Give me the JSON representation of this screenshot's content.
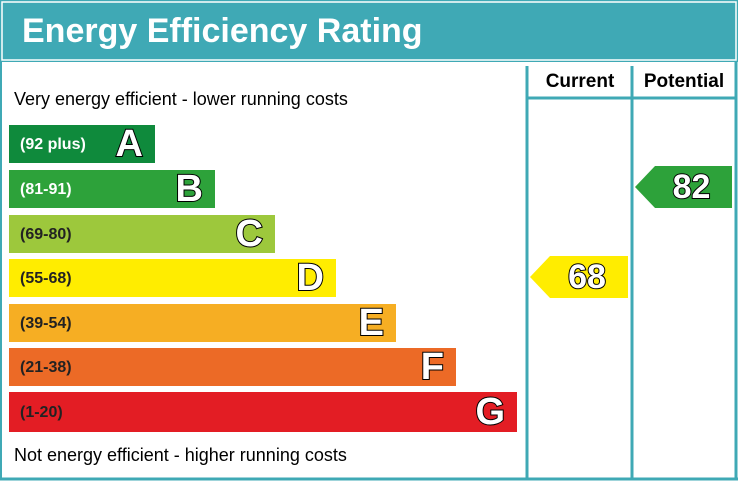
{
  "title": "Energy Efficiency Rating",
  "headers": {
    "current": "Current",
    "potential": "Potential"
  },
  "top_note": "Very energy efficient - lower running costs",
  "bottom_note": "Not energy efficient - higher running costs",
  "bands": [
    {
      "range": "(92 plus)",
      "letter": "A",
      "color": "#0f8a3c",
      "text_color": "#ffffff"
    },
    {
      "range": "(81-91)",
      "letter": "B",
      "color": "#2da23a",
      "text_color": "#ffffff"
    },
    {
      "range": "(69-80)",
      "letter": "C",
      "color": "#9dc83c",
      "text_color": "#222222"
    },
    {
      "range": "(55-68)",
      "letter": "D",
      "color": "#ffed00",
      "text_color": "#222222"
    },
    {
      "range": "(39-54)",
      "letter": "E",
      "color": "#f6ae23",
      "text_color": "#222222"
    },
    {
      "range": "(21-38)",
      "letter": "F",
      "color": "#ec6a26",
      "text_color": "#222222"
    },
    {
      "range": "(1-20)",
      "letter": "G",
      "color": "#e31d24",
      "text_color": "#222222"
    }
  ],
  "current": {
    "value": 68,
    "color": "#ffed00"
  },
  "potential": {
    "value": 82,
    "color": "#2da23a"
  }
}
